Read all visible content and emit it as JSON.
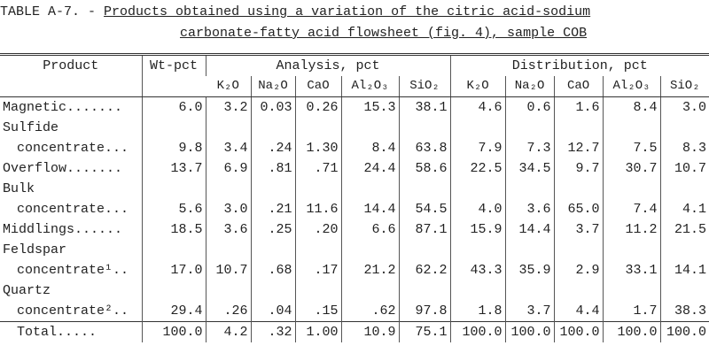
{
  "header": {
    "label": "TABLE A-7. -",
    "title_lines": [
      "Products obtained using a variation of the citric acid-sodium",
      "carbonate-fatty acid flowsheet (fig. 4), sample COB"
    ]
  },
  "table": {
    "columns": {
      "product": "Product",
      "wt": "Wt-pct",
      "analysis": "Analysis, pct",
      "distribution": "Distribution, pct"
    },
    "analysis_columns": [
      "K₂O",
      "Na₂O",
      "CaO",
      "Al₂O₃",
      "SiO₂"
    ],
    "distribution_columns": [
      "K₂O",
      "Na₂O",
      "CaO",
      "Al₂O₃",
      "SiO₂"
    ],
    "rows": [
      {
        "product": [
          "Magnetic......."
        ],
        "wt": "6.0",
        "analysis": [
          "3.2",
          "0.03",
          "0.26",
          "15.3",
          "38.1"
        ],
        "distribution": [
          "4.6",
          "0.6",
          "1.6",
          "8.4",
          "3.0"
        ]
      },
      {
        "product": [
          "Sulfide",
          "concentrate..."
        ],
        "wt": "9.8",
        "analysis": [
          "3.4",
          ".24",
          "1.30",
          "8.4",
          "63.8"
        ],
        "distribution": [
          "7.9",
          "7.3",
          "12.7",
          "7.5",
          "8.3"
        ]
      },
      {
        "product": [
          "Overflow......."
        ],
        "wt": "13.7",
        "analysis": [
          "6.9",
          ".81",
          ".71",
          "24.4",
          "58.6"
        ],
        "distribution": [
          "22.5",
          "34.5",
          "9.7",
          "30.7",
          "10.7"
        ]
      },
      {
        "product": [
          "Bulk",
          "concentrate..."
        ],
        "wt": "5.6",
        "analysis": [
          "3.0",
          ".21",
          "11.6",
          "14.4",
          "54.5"
        ],
        "distribution": [
          "4.0",
          "3.6",
          "65.0",
          "7.4",
          "4.1"
        ]
      },
      {
        "product": [
          "Middlings......"
        ],
        "wt": "18.5",
        "analysis": [
          "3.6",
          ".25",
          ".20",
          "6.6",
          "87.1"
        ],
        "distribution": [
          "15.9",
          "14.4",
          "3.7",
          "11.2",
          "21.5"
        ]
      },
      {
        "product": [
          "Feldspar",
          "concentrate¹.."
        ],
        "wt": "17.0",
        "analysis": [
          "10.7",
          ".68",
          ".17",
          "21.2",
          "62.2"
        ],
        "distribution": [
          "43.3",
          "35.9",
          "2.9",
          "33.1",
          "14.1"
        ]
      },
      {
        "product": [
          "Quartz",
          "concentrate².."
        ],
        "wt": "29.4",
        "analysis": [
          ".26",
          ".04",
          ".15",
          ".62",
          "97.8"
        ],
        "distribution": [
          "1.8",
          "3.7",
          "4.4",
          "1.7",
          "38.3"
        ]
      },
      {
        "product": [
          "Total....."
        ],
        "wt": "100.0",
        "analysis": [
          "4.2",
          ".32",
          "1.00",
          "10.9",
          "75.1"
        ],
        "distribution": [
          "100.0",
          "100.0",
          "100.0",
          "100.0",
          "100.0"
        ]
      }
    ]
  }
}
